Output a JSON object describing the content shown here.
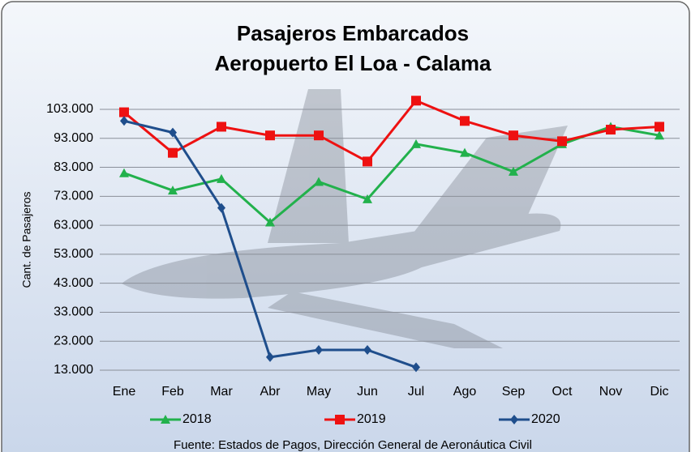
{
  "chart_data": {
    "type": "line",
    "title": "Pasajeros Embarcados",
    "subtitle": "Aeropuerto El Loa - Calama",
    "y_label": "Cant. de Pasajeros",
    "source": "Fuente: Estados de Pagos, Dirección General de Aeronáutica Civil",
    "categories": [
      "Ene",
      "Feb",
      "Mar",
      "Abr",
      "May",
      "Jun",
      "Jul",
      "Ago",
      "Sep",
      "Oct",
      "Nov",
      "Dic"
    ],
    "series": [
      {
        "name": "2018",
        "color": "#22b14c",
        "marker": "triangle",
        "values": [
          81000,
          75000,
          79000,
          64000,
          78000,
          72000,
          91000,
          88000,
          81500,
          91000,
          97000,
          94000
        ]
      },
      {
        "name": "2019",
        "color": "#ee1111",
        "marker": "square",
        "values": [
          102000,
          88000,
          97000,
          94000,
          94000,
          85000,
          106000,
          99000,
          94000,
          92000,
          96000,
          97000
        ]
      },
      {
        "name": "2020",
        "color": "#1f4e8c",
        "marker": "diamond",
        "values": [
          99000,
          95000,
          69000,
          17500,
          20000,
          20000,
          14000,
          null,
          null,
          null,
          null,
          null
        ]
      }
    ],
    "ylim": [
      13000,
      103000
    ],
    "yticks": [
      {
        "value": 13000,
        "label": "13.000"
      },
      {
        "value": 23000,
        "label": "23.000"
      },
      {
        "value": 33000,
        "label": "33.000"
      },
      {
        "value": 43000,
        "label": "43.000"
      },
      {
        "value": 53000,
        "label": "53.000"
      },
      {
        "value": 63000,
        "label": "63.000"
      },
      {
        "value": 73000,
        "label": "73.000"
      },
      {
        "value": 83000,
        "label": "83.000"
      },
      {
        "value": 93000,
        "label": "93.000"
      },
      {
        "value": 103000,
        "label": "103.000"
      }
    ],
    "grid": true,
    "legend": "bottom"
  }
}
